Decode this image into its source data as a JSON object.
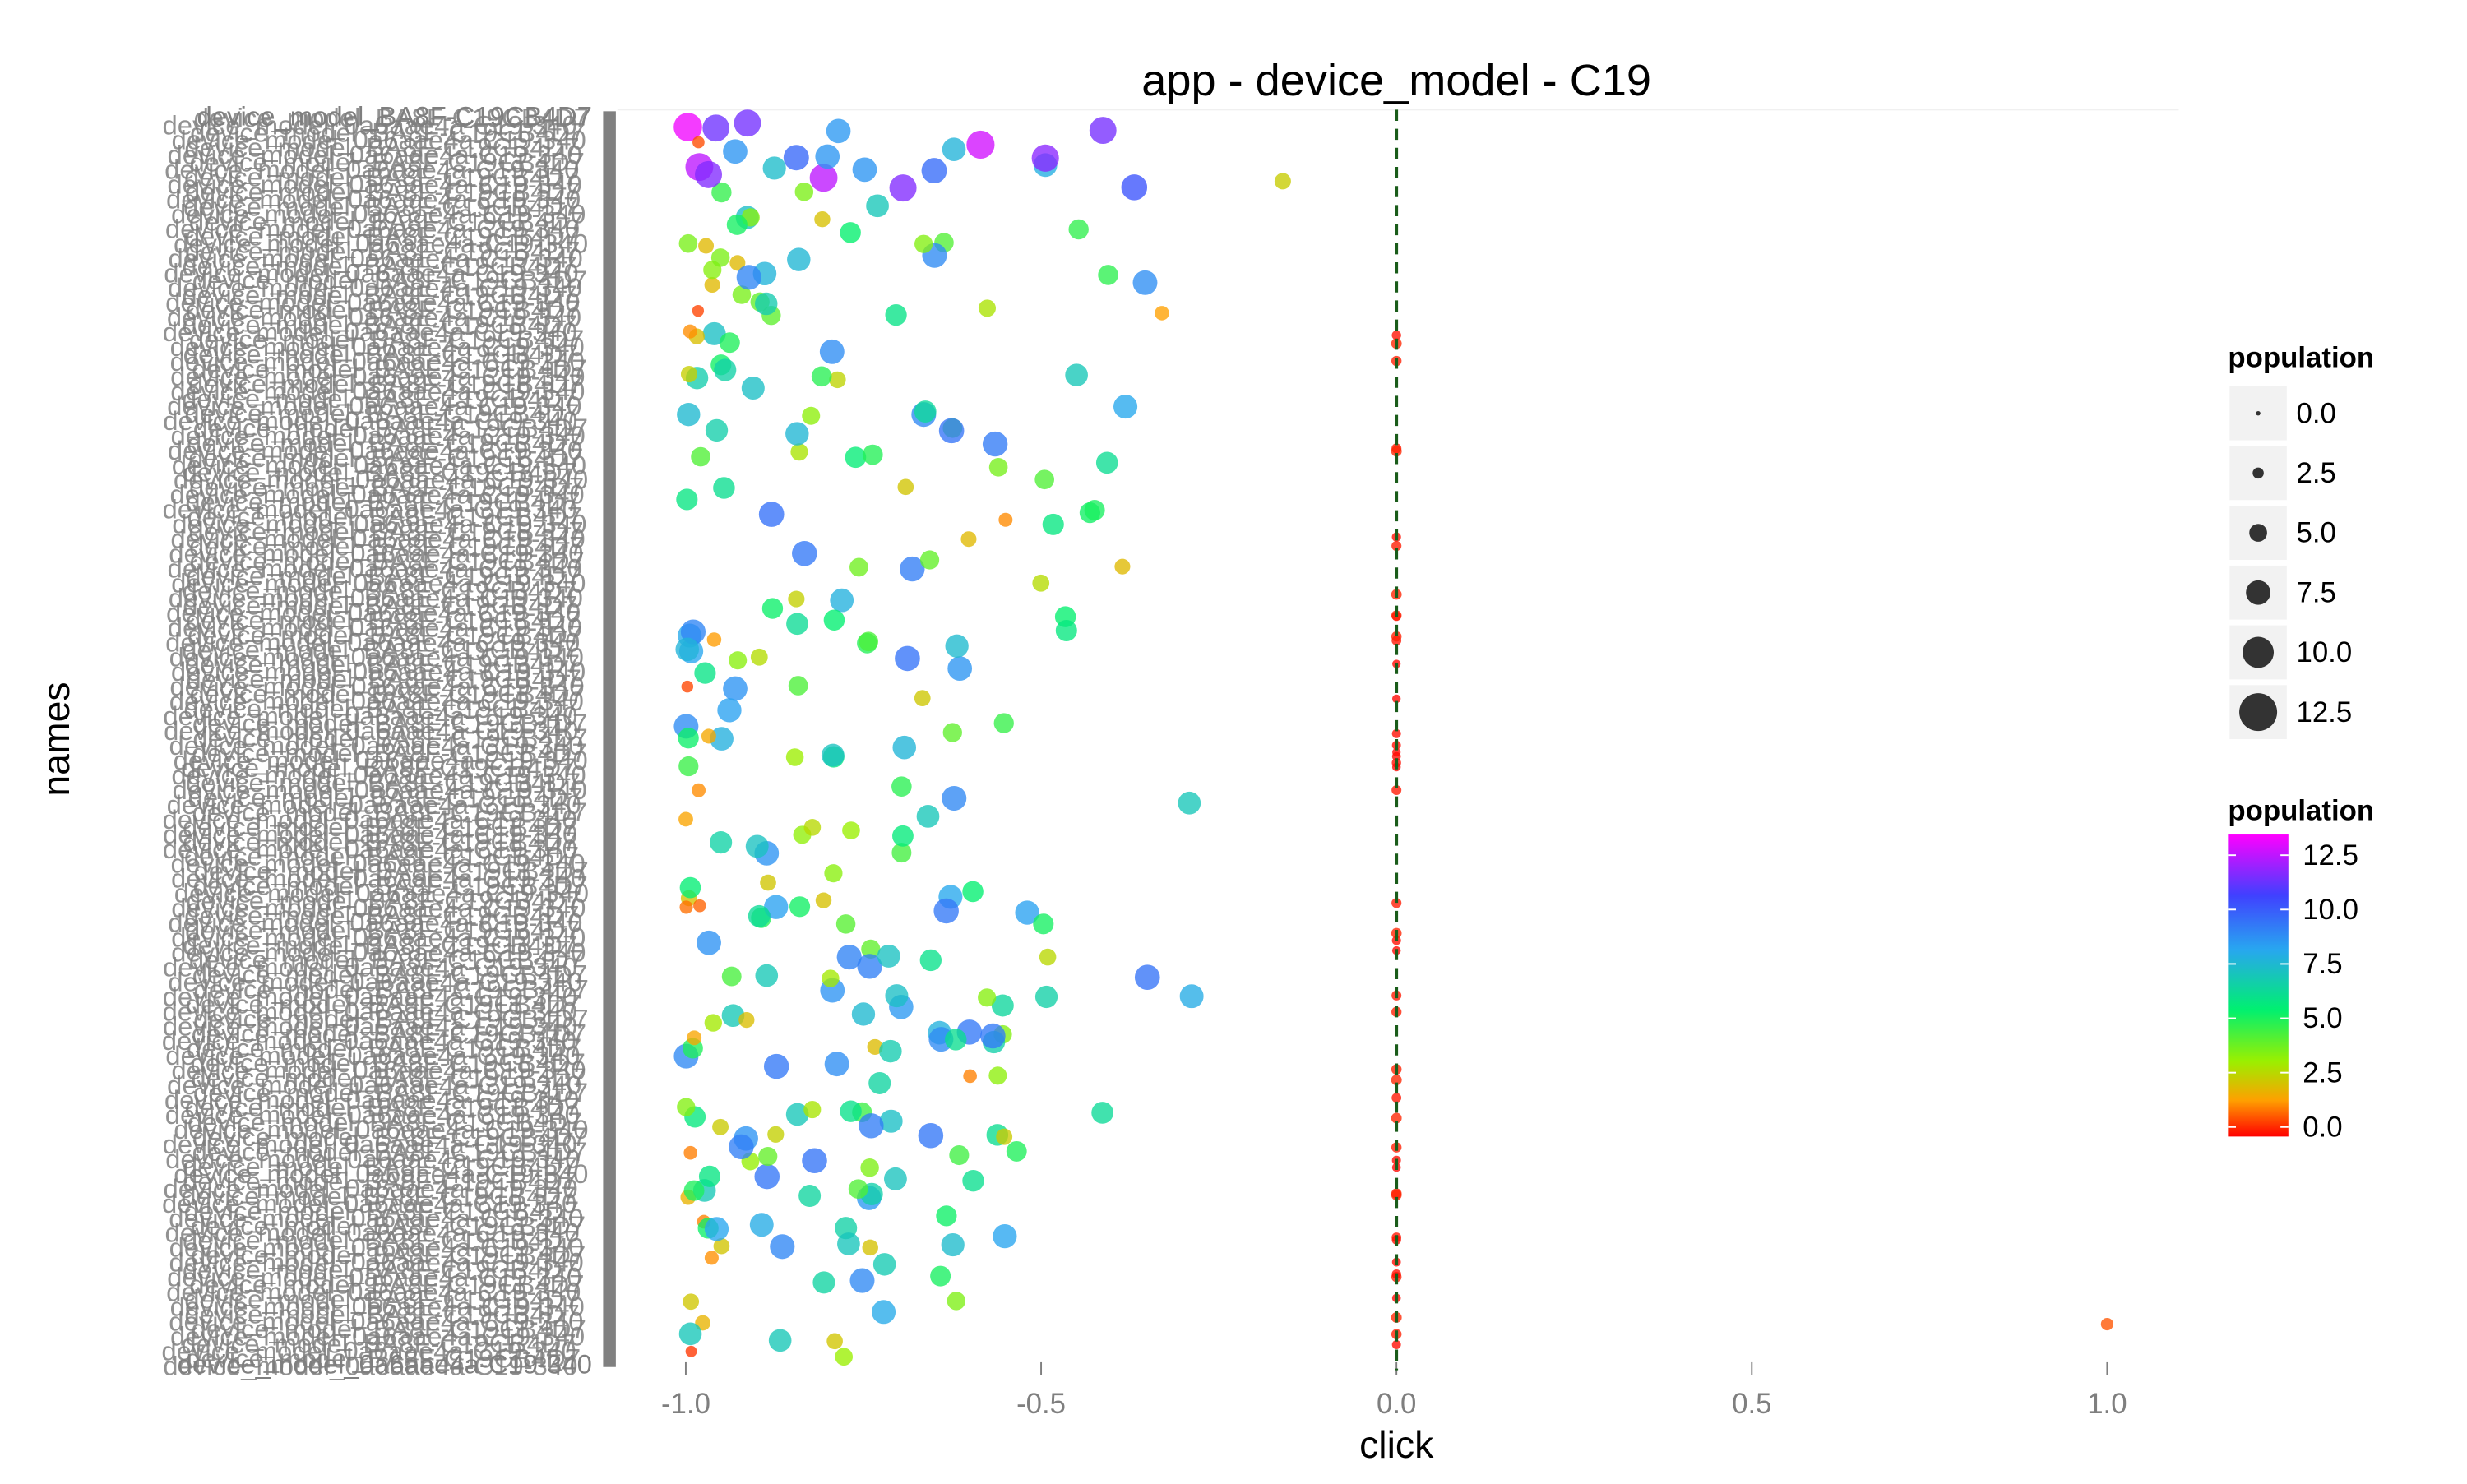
{
  "chart_data": {
    "type": "scatter",
    "title": "app - device_model - C19",
    "xlabel": "click",
    "ylabel": "names",
    "xlim": [
      -1.1,
      1.1
    ],
    "x_ticks": [
      -1.0,
      -0.5,
      0.0,
      0.5,
      1.0
    ],
    "x_tick_labels": [
      "-1.0",
      "-0.5",
      "0.0",
      "0.5",
      "1.0"
    ],
    "reference_line": {
      "x": 0.0,
      "color": "#1a5c1a",
      "style": "dashed"
    },
    "y_category_labels_visible": [
      "device_model_BA8F-C19CB4D7",
      "device_model_0a6aae4a-C19-340"
    ],
    "size_legend": {
      "title": "population",
      "values": [
        "0.0",
        "2.5",
        "5.0",
        "7.5",
        "10.0",
        "12.5"
      ]
    },
    "color_legend": {
      "title": "population",
      "values": [
        "12.5",
        "10.0",
        "7.5",
        "5.0",
        "2.5",
        "0.0"
      ],
      "stops": [
        "#ff00ff",
        "#2f2fff",
        "#28a6f0",
        "#00f070",
        "#80f000",
        "#ffa000",
        "#ff0000"
      ]
    },
    "points_range": {
      "x": [
        -1.0,
        1.0
      ],
      "population": [
        0.0,
        12.5
      ]
    }
  }
}
